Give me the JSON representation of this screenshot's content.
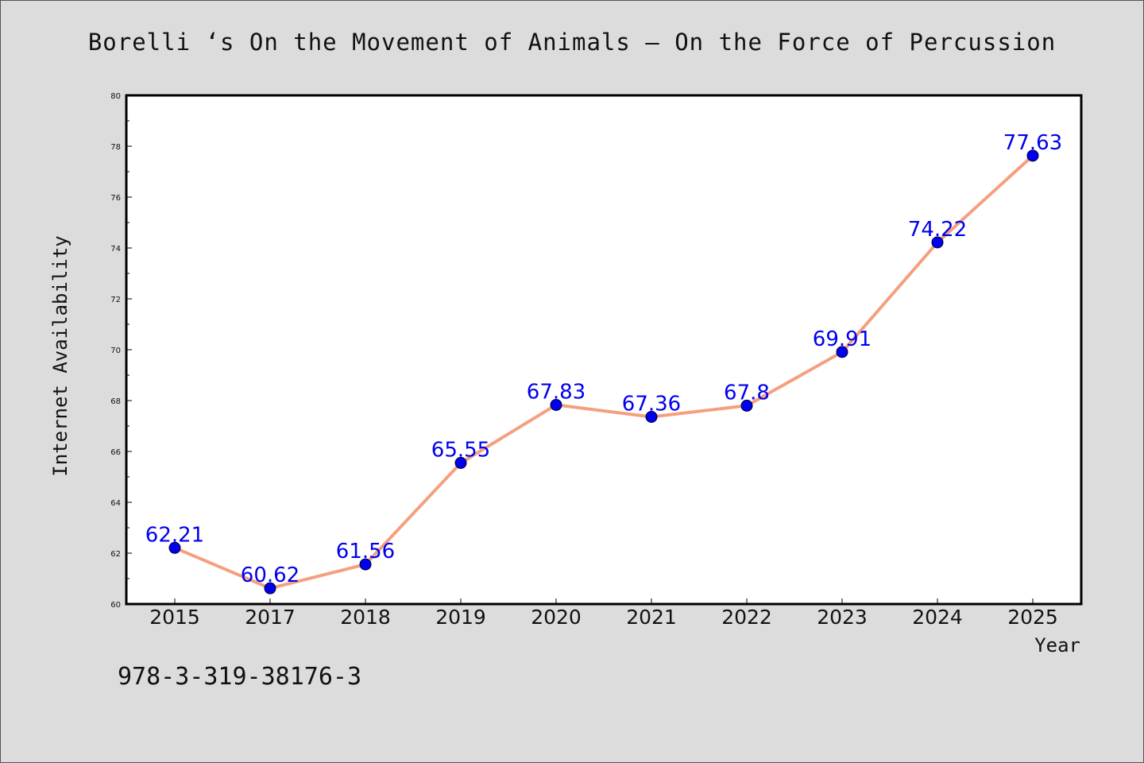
{
  "footer": {
    "code": "978-3-319-38176-3"
  },
  "chart_data": {
    "type": "line",
    "title": "Borelli ‘s On the Movement of Animals – On the Force of Percussion",
    "xlabel": "Year",
    "ylabel": "Internet Availability",
    "categories": [
      "2015",
      "2017",
      "2018",
      "2019",
      "2020",
      "2021",
      "2022",
      "2023",
      "2024",
      "2025"
    ],
    "series": [
      {
        "values": [
          62.21,
          60.62,
          61.56,
          65.55,
          67.83,
          67.36,
          67.8,
          69.91,
          74.22,
          77.63
        ],
        "labels": [
          "62.21",
          "60.62",
          "61.56",
          "65.55",
          "67.83",
          "67.36",
          "67.8",
          "69.91",
          "74.22",
          "77.63"
        ]
      }
    ],
    "ylim": [
      60,
      80
    ],
    "yticks": [
      60,
      62,
      64,
      66,
      68,
      70,
      72,
      74,
      76,
      78,
      80
    ],
    "grid": false,
    "colors": {
      "line": "#f4a07f",
      "marker": "#0000ee",
      "data_label": "#0000ee",
      "plot_bg": "#ffffff",
      "page_bg": "#dcdcdc"
    }
  }
}
